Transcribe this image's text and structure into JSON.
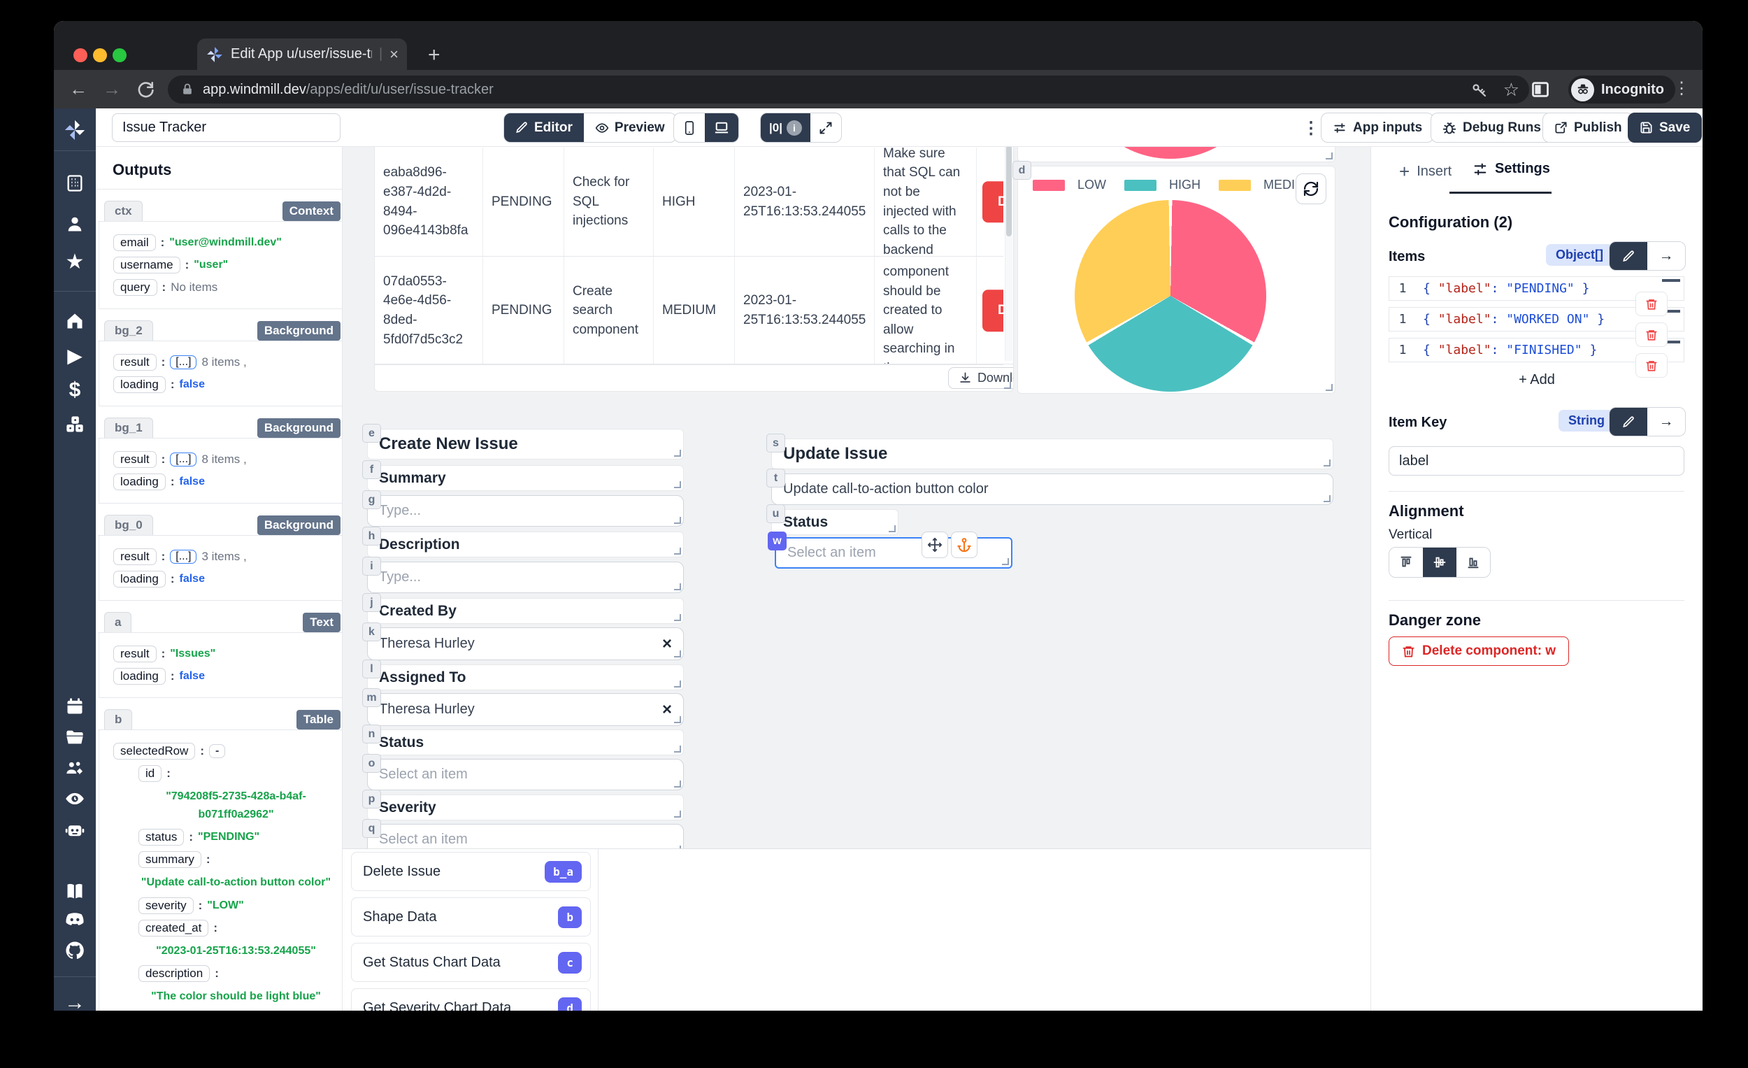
{
  "browser": {
    "tab_title": "Edit App u/user/issue-tracker",
    "url_domain": "app.windmill.dev",
    "url_path": "/apps/edit/u/user/issue-tracker",
    "incognito_label": "Incognito"
  },
  "icons": {
    "close": "×",
    "plus": "+",
    "dots_v": "⋮",
    "star_outline": "☆",
    "back": "←",
    "forward": "→",
    "arrow_right": "→",
    "play": "▶",
    "dollar": "$",
    "star_filled": "★",
    "info": "i",
    "schema_glyph": "|0|"
  },
  "colors": {
    "accent_dark": "#2e3a4d",
    "danger": "#ef4444",
    "indigo": "#6366f1",
    "string_green": "#16a34a",
    "bool_blue": "#2563eb",
    "badge_gray": "#64748b",
    "selection_blue": "#3b82f6"
  },
  "toolbar": {
    "app_title": "Issue Tracker",
    "editor_label": "Editor",
    "preview_label": "Preview",
    "app_inputs_label": "App inputs",
    "debug_runs_label": "Debug Runs",
    "publish_label": "Publish",
    "save_label": "Save"
  },
  "sidebar_icons": [
    "windmill-logo",
    "building",
    "person",
    "star",
    "home",
    "play",
    "dollar",
    "dice",
    "calendar",
    "folder",
    "users-cog",
    "eye",
    "robot",
    "book",
    "discord",
    "github",
    "arrow-right"
  ],
  "outputs": {
    "title": "Outputs",
    "sections": [
      {
        "id": "ctx",
        "badge": "Context",
        "rows": [
          {
            "key": "email",
            "value": "\"user@windmill.dev\"",
            "vtype": "string"
          },
          {
            "key": "username",
            "value": "\"user\"",
            "vtype": "string"
          },
          {
            "key": "query",
            "value": "No items",
            "vtype": "meta"
          }
        ]
      },
      {
        "id": "bg_2",
        "badge": "Background",
        "rows": [
          {
            "key": "result",
            "pill": "[...]",
            "value": "8 items ,",
            "vtype": "meta"
          },
          {
            "key": "loading",
            "value": "false",
            "vtype": "bool"
          }
        ]
      },
      {
        "id": "bg_1",
        "badge": "Background",
        "rows": [
          {
            "key": "result",
            "pill": "[...]",
            "value": "8 items ,",
            "vtype": "meta"
          },
          {
            "key": "loading",
            "value": "false",
            "vtype": "bool"
          }
        ]
      },
      {
        "id": "bg_0",
        "badge": "Background",
        "rows": [
          {
            "key": "result",
            "pill": "[...]",
            "value": "3 items ,",
            "vtype": "meta"
          },
          {
            "key": "loading",
            "value": "false",
            "vtype": "bool"
          }
        ]
      },
      {
        "id": "a",
        "badge": "Text",
        "rows": [
          {
            "key": "result",
            "value": "\"Issues\"",
            "vtype": "string"
          },
          {
            "key": "loading",
            "value": "false",
            "vtype": "bool"
          }
        ]
      },
      {
        "id": "b",
        "badge": "Table",
        "rows": [
          {
            "key": "selectedRow",
            "value": "-",
            "vtype": "dash"
          },
          {
            "key": "id",
            "value": "\"794208f5-2735-428a-b4af-b071ff0a2962\"",
            "vtype": "string",
            "indent": 1,
            "block": true
          },
          {
            "key": "status",
            "value": "\"PENDING\"",
            "vtype": "string",
            "indent": 1
          },
          {
            "key": "summary",
            "value": "\"Update call-to-action button color\"",
            "vtype": "string",
            "indent": 1,
            "block": true
          },
          {
            "key": "severity",
            "value": "\"LOW\"",
            "vtype": "string",
            "indent": 1
          },
          {
            "key": "created_at",
            "value": "\"2023-01-25T16:13:53.244055\"",
            "vtype": "string",
            "indent": 1,
            "block": true
          },
          {
            "key": "description",
            "value": "\"The color should be light blue\"",
            "vtype": "string",
            "indent": 1,
            "block": true
          },
          {
            "key": "loading",
            "value": "false",
            "vtype": "bool"
          }
        ]
      }
    ]
  },
  "issues_table": {
    "rows": [
      {
        "id": "eaba8d96-e387-4d2d-8494-096e4143b8fa",
        "status": "PENDING",
        "summary": "Check for SQL injections",
        "severity": "HIGH",
        "created_at": "2023-01-25T16:13:53.244055",
        "description": "Make sure that SQL can not be injected with calls to the backend",
        "action": "Delete"
      },
      {
        "id": "07da0553-4e6e-4d56-8ded-5fd0f7d5c3c2",
        "status": "PENDING",
        "summary": "Create search component",
        "severity": "MEDIUM",
        "created_at": "2023-01-25T16:13:53.244055",
        "description": "A new component should be created to allow searching in the",
        "action": "Delete"
      }
    ],
    "download_label": "Download"
  },
  "chart_data": {
    "type": "pie",
    "labels": [
      "LOW",
      "HIGH",
      "MEDIUM"
    ],
    "values": [
      33.3,
      33.3,
      33.3
    ],
    "colors": [
      "#FF6384",
      "#4BC0C0",
      "#FFCE56"
    ],
    "title": "",
    "legend_position": "top"
  },
  "component_badges": {
    "chart": "d",
    "create_title": "e",
    "summary_label": "f",
    "summary_input": "g",
    "description_label": "h",
    "description_input": "i",
    "created_by_label": "j",
    "created_by_select": "k",
    "assigned_to_label": "l",
    "assigned_to_select": "m",
    "status_label": "n",
    "status_select": "o",
    "severity_label": "p",
    "severity_select": "q",
    "update_title": "s",
    "update_summary_input": "t",
    "update_status_label": "u",
    "update_status_select": "w"
  },
  "create_form": {
    "title": "Create New Issue",
    "summary_label": "Summary",
    "summary_placeholder": "Type...",
    "description_label": "Description",
    "description_placeholder": "Type...",
    "created_by_label": "Created By",
    "created_by_value": "Theresa Hurley",
    "assigned_to_label": "Assigned To",
    "assigned_to_value": "Theresa Hurley",
    "status_label": "Status",
    "status_placeholder": "Select an item",
    "severity_label": "Severity",
    "severity_placeholder": "Select an item"
  },
  "update_form": {
    "title": "Update Issue",
    "summary_value": "Update call-to-action button color",
    "status_label": "Status",
    "status_placeholder": "Select an item"
  },
  "runnables": [
    {
      "label": "Delete Issue",
      "badge": "b_a"
    },
    {
      "label": "Shape Data",
      "badge": "b"
    },
    {
      "label": "Get Status Chart Data",
      "badge": "c"
    },
    {
      "label": "Get Severity Chart Data",
      "badge": "d"
    }
  ],
  "settings_panel": {
    "insert_tab": "Insert",
    "settings_tab": "Settings",
    "configuration_title": "Configuration (2)",
    "items_label": "Items",
    "items_type": "Object[]",
    "items": [
      {
        "line": "1",
        "key": "\"label\"",
        "value": "\"PENDING\""
      },
      {
        "line": "1",
        "key": "\"label\"",
        "value": "\"WORKED ON\""
      },
      {
        "line": "1",
        "key": "\"label\"",
        "value": "\"FINISHED\""
      }
    ],
    "add_label": "+ Add",
    "item_key_label": "Item Key",
    "item_key_type": "String",
    "item_key_value": "label",
    "alignment_title": "Alignment",
    "vertical_label": "Vertical",
    "danger_title": "Danger zone",
    "delete_component_label": "Delete component: w"
  }
}
